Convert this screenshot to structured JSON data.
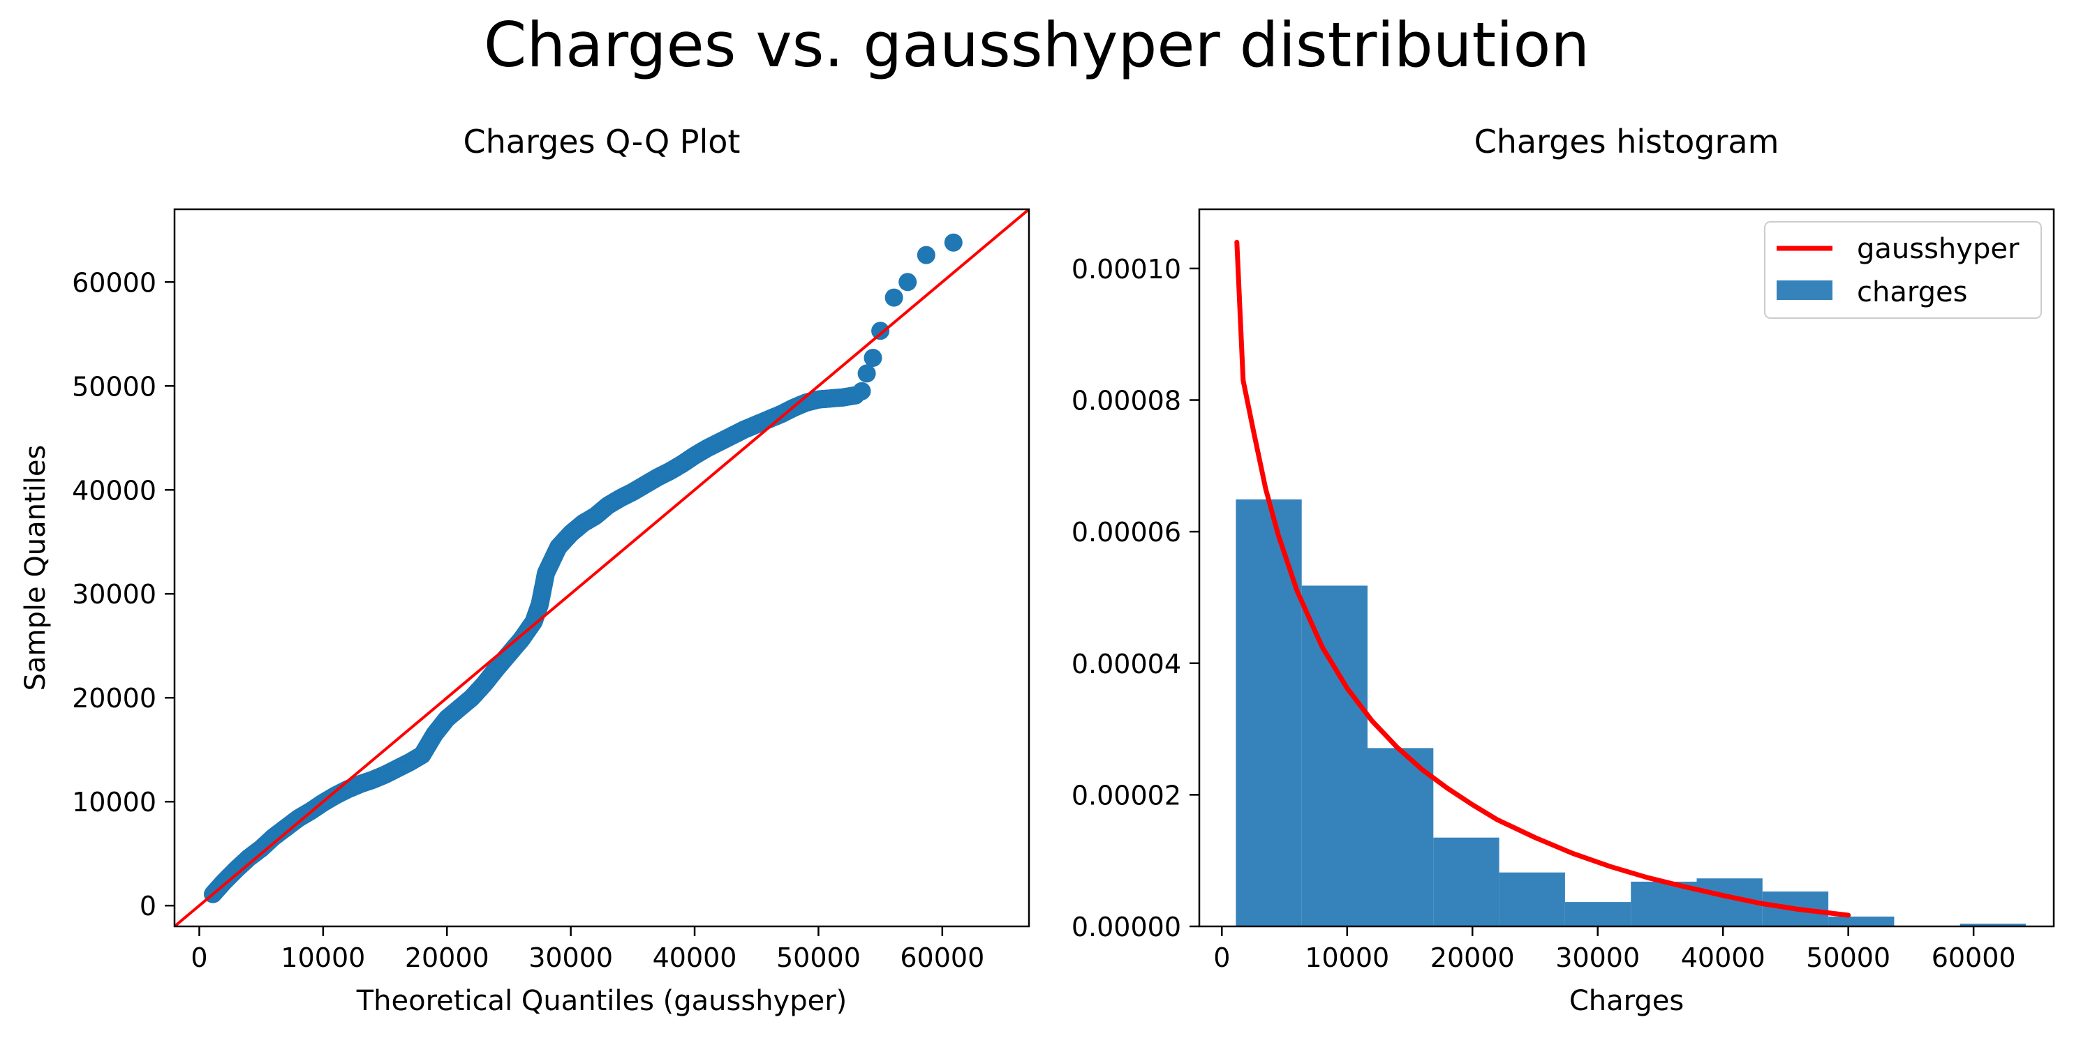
{
  "figure": {
    "title": "Charges vs. gausshyper distribution"
  },
  "colors": {
    "points": "#1f77b4",
    "bars": "#3683bb",
    "line": "#ff0000",
    "axes": "#000000"
  },
  "chart_data": [
    {
      "type": "scatter",
      "title": "Charges Q-Q Plot",
      "xlabel": "Theoretical Quantiles (gausshyper)",
      "ylabel": "Sample Quantiles",
      "xlim": [
        -2000,
        67000
      ],
      "ylim": [
        -2000,
        67000
      ],
      "xticks": [
        0,
        10000,
        20000,
        30000,
        40000,
        50000,
        60000
      ],
      "yticks": [
        0,
        10000,
        20000,
        30000,
        40000,
        50000,
        60000
      ],
      "reference_line": {
        "name": "y = x",
        "from": [
          -2000,
          -2000
        ],
        "to": [
          67000,
          67000
        ]
      },
      "curve": [
        [
          1100,
          1100
        ],
        [
          2000,
          2300
        ],
        [
          3000,
          3500
        ],
        [
          4000,
          4600
        ],
        [
          5000,
          5500
        ],
        [
          6000,
          6600
        ],
        [
          7000,
          7500
        ],
        [
          8000,
          8400
        ],
        [
          9000,
          9100
        ],
        [
          10000,
          9900
        ],
        [
          11000,
          10600
        ],
        [
          12000,
          11200
        ],
        [
          13000,
          11700
        ],
        [
          14000,
          12100
        ],
        [
          15000,
          12600
        ],
        [
          16000,
          13200
        ],
        [
          17000,
          13800
        ],
        [
          18000,
          14500
        ],
        [
          19000,
          16500
        ],
        [
          20000,
          18000
        ],
        [
          21000,
          19000
        ],
        [
          22000,
          20000
        ],
        [
          23000,
          21300
        ],
        [
          24000,
          22800
        ],
        [
          25000,
          24200
        ],
        [
          26000,
          25600
        ],
        [
          27000,
          27300
        ],
        [
          27500,
          29000
        ],
        [
          28000,
          32000
        ],
        [
          29000,
          34500
        ],
        [
          30000,
          35800
        ],
        [
          31000,
          36800
        ],
        [
          32000,
          37500
        ],
        [
          33000,
          38500
        ],
        [
          34000,
          39200
        ],
        [
          35000,
          39800
        ],
        [
          36000,
          40500
        ],
        [
          37000,
          41200
        ],
        [
          38000,
          41800
        ],
        [
          39000,
          42500
        ],
        [
          40000,
          43300
        ],
        [
          41000,
          44000
        ],
        [
          42000,
          44600
        ],
        [
          43000,
          45200
        ],
        [
          44000,
          45800
        ],
        [
          45000,
          46300
        ],
        [
          46000,
          46800
        ],
        [
          47000,
          47300
        ],
        [
          48000,
          47900
        ],
        [
          49000,
          48400
        ],
        [
          50000,
          48700
        ],
        [
          51000,
          48800
        ],
        [
          52000,
          48900
        ],
        [
          53000,
          49100
        ]
      ],
      "outliers": [
        [
          53500,
          49500
        ],
        [
          53900,
          51200
        ],
        [
          54400,
          52700
        ],
        [
          55000,
          55300
        ],
        [
          56100,
          58500
        ],
        [
          57200,
          60000
        ],
        [
          58700,
          62600
        ],
        [
          60900,
          63800
        ]
      ]
    },
    {
      "type": "bar",
      "title": "Charges histogram",
      "xlabel": "Charges",
      "ylabel": "",
      "xlim": [
        -1800,
        66400
      ],
      "ylim": [
        0,
        0.000109
      ],
      "xticks": [
        0,
        10000,
        20000,
        30000,
        40000,
        50000,
        60000
      ],
      "yticks": [
        0,
        2e-05,
        4e-05,
        6e-05,
        8e-05,
        0.0001
      ],
      "ytick_labels": [
        "0.00000",
        "0.00002",
        "0.00004",
        "0.00006",
        "0.00008",
        "0.00010"
      ],
      "bin_edges": [
        1122,
        6376,
        11630,
        16884,
        22138,
        27392,
        32646,
        37900,
        43154,
        48408,
        53662,
        58916,
        64170
      ],
      "values": [
        6.49e-05,
        5.18e-05,
        2.71e-05,
        1.35e-05,
        8.2e-06,
        3.7e-06,
        6.8e-06,
        7.3e-06,
        5.3e-06,
        1.5e-06,
        0.0,
        4e-07
      ],
      "series": [
        {
          "name": "gausshyper",
          "type": "line",
          "x": [
            1200,
            1700,
            2500,
            3500,
            4500,
            6000,
            8000,
            10000,
            12000,
            14000,
            16000,
            18000,
            20000,
            22000,
            25000,
            28000,
            31000,
            34000,
            37000,
            40000,
            43000,
            46000,
            50000
          ],
          "y": [
            0.000104,
            8.3e-05,
            7.55e-05,
            6.65e-05,
            5.95e-05,
            5.1e-05,
            4.25e-05,
            3.62e-05,
            3.12e-05,
            2.72e-05,
            2.38e-05,
            2.1e-05,
            1.85e-05,
            1.62e-05,
            1.35e-05,
            1.11e-05,
            9.1e-06,
            7.4e-06,
            6e-06,
            4.7e-06,
            3.5e-06,
            2.6e-06,
            1.7e-06
          ]
        },
        {
          "name": "charges",
          "type": "bar"
        }
      ],
      "legend_position": "top-right"
    }
  ]
}
